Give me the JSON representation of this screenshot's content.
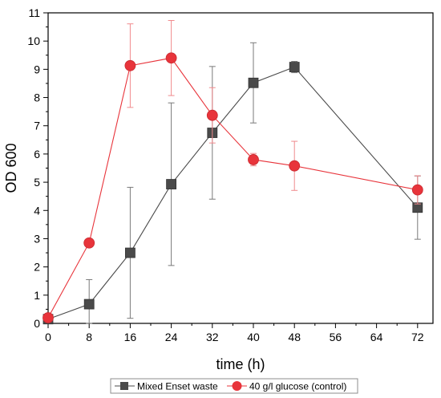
{
  "chart_data": {
    "type": "line",
    "title": "",
    "xlabel": "time (h)",
    "ylabel": "OD 600",
    "xlim": [
      0,
      75
    ],
    "ylim": [
      0,
      11
    ],
    "x_ticks": [
      0,
      8,
      16,
      24,
      32,
      40,
      48,
      56,
      64,
      72
    ],
    "y_ticks": [
      0,
      1,
      2,
      3,
      4,
      5,
      6,
      7,
      8,
      9,
      10,
      11
    ],
    "grid": false,
    "legend_position": "bottom",
    "series": [
      {
        "name": "Mixed Enset waste",
        "color": "#4a4a4a",
        "marker": "square",
        "x": [
          0,
          8,
          16,
          24,
          32,
          40,
          48,
          72
        ],
        "y": [
          0.15,
          0.68,
          2.5,
          4.93,
          6.75,
          8.52,
          9.08,
          4.1
        ],
        "error": [
          0.05,
          0.87,
          2.32,
          2.88,
          2.35,
          1.42,
          0.2,
          1.12
        ]
      },
      {
        "name": "40 g/l glucose (control)",
        "color": "#e8343b",
        "marker": "circle",
        "x": [
          0,
          8,
          16,
          24,
          32,
          40,
          48,
          72
        ],
        "y": [
          0.2,
          2.85,
          9.13,
          9.4,
          7.37,
          5.8,
          5.58,
          4.73
        ],
        "error": [
          0.05,
          0.1,
          1.48,
          1.33,
          0.98,
          0.22,
          0.87,
          0.5
        ]
      }
    ]
  }
}
